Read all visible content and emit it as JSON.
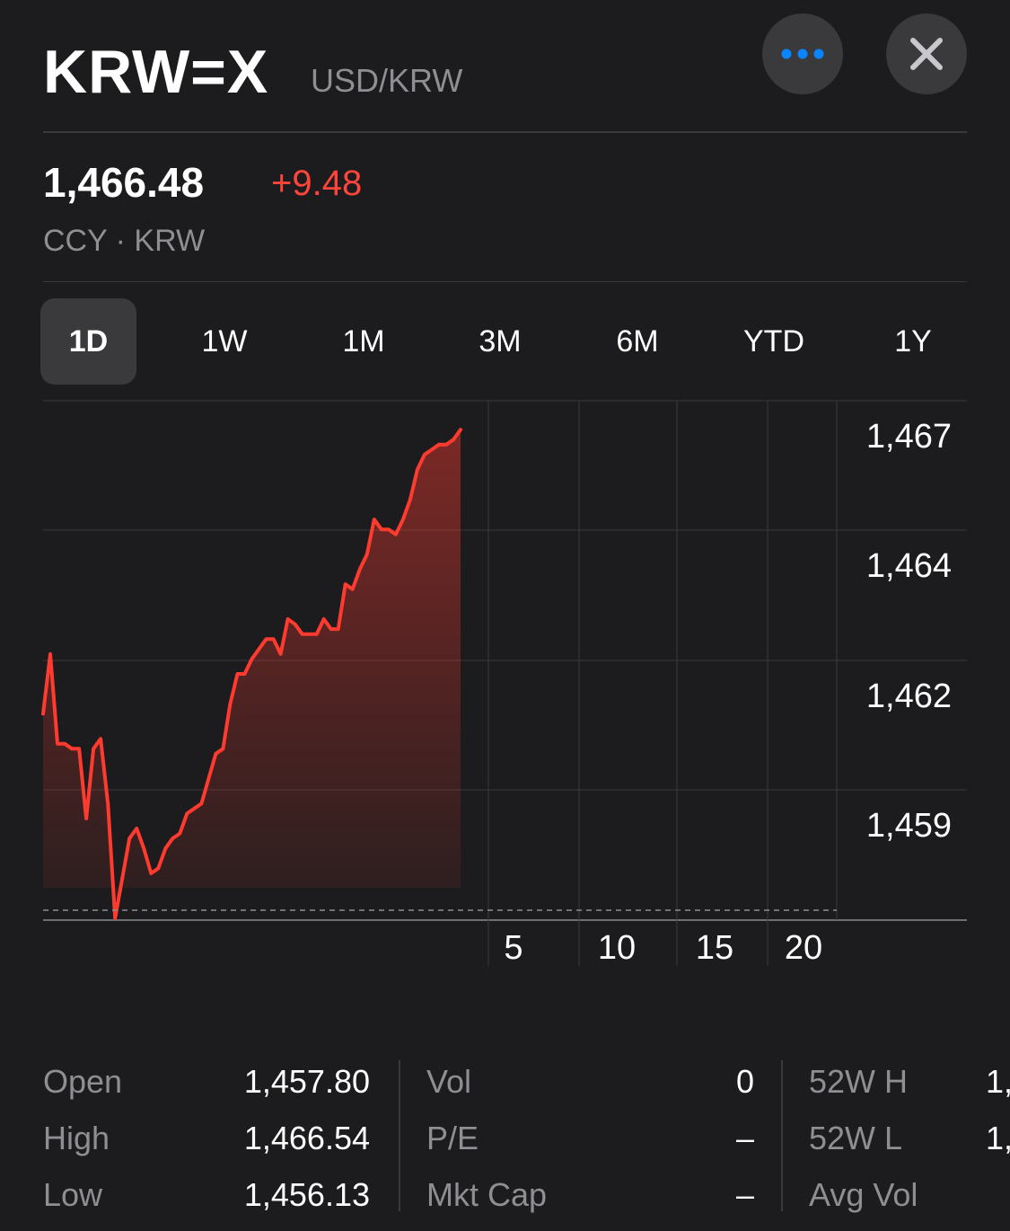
{
  "header": {
    "symbol": "KRW=X",
    "pair": "USD/KRW",
    "more_icon": "ellipsis-icon",
    "close_icon": "close-icon"
  },
  "quote": {
    "price": "1,466.48",
    "change": "+9.48",
    "subtitle": "CCY · KRW",
    "change_color": "#ff453a"
  },
  "ranges": [
    "1D",
    "1W",
    "1M",
    "3M",
    "6M",
    "YTD",
    "1Y"
  ],
  "active_range": "1D",
  "chart_data": {
    "type": "area",
    "line_color": "#ff3b30",
    "y_ticks": [
      "1,467",
      "1,464",
      "1,462",
      "1,459"
    ],
    "x_ticks": [
      "5",
      "10",
      "15",
      "20"
    ],
    "previous_close": 1457.0,
    "ylim": [
      1457.0,
      1467.4
    ],
    "values": [
      1461.3,
      1462.5,
      1460.7,
      1460.7,
      1460.6,
      1460.6,
      1459.2,
      1460.6,
      1460.8,
      1459.5,
      1457.2,
      1458.0,
      1458.8,
      1459.0,
      1458.6,
      1458.1,
      1458.2,
      1458.6,
      1458.8,
      1458.9,
      1459.3,
      1459.4,
      1459.5,
      1460.0,
      1460.5,
      1460.6,
      1461.5,
      1462.1,
      1462.1,
      1462.4,
      1462.6,
      1462.8,
      1462.8,
      1462.5,
      1463.2,
      1463.1,
      1462.9,
      1462.9,
      1462.9,
      1463.2,
      1463.0,
      1463.0,
      1463.9,
      1463.8,
      1464.2,
      1464.5,
      1465.2,
      1465.0,
      1465.0,
      1464.9,
      1465.2,
      1465.6,
      1466.2,
      1466.5,
      1466.6,
      1466.7,
      1466.7,
      1466.8,
      1467.0
    ]
  },
  "stats": {
    "col1": [
      {
        "label": "Open",
        "value": "1,457.80"
      },
      {
        "label": "High",
        "value": "1,466.54"
      },
      {
        "label": "Low",
        "value": "1,456.13"
      }
    ],
    "col2": [
      {
        "label": "Vol",
        "value": "0"
      },
      {
        "label": "P/E",
        "value": "–"
      },
      {
        "label": "Mkt Cap",
        "value": "–"
      }
    ],
    "col3": [
      {
        "label": "52W H",
        "value": "1,"
      },
      {
        "label": "52W L",
        "value": "1,"
      },
      {
        "label": "Avg Vol",
        "value": ""
      }
    ]
  }
}
